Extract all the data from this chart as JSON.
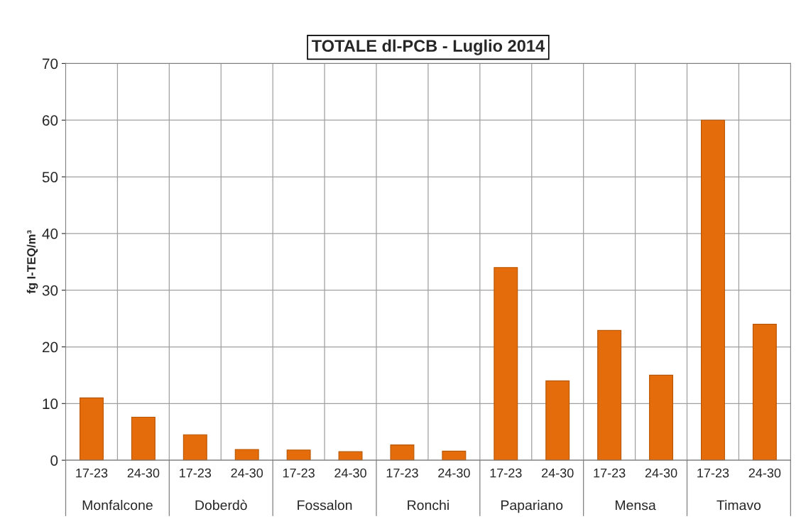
{
  "chart_data": {
    "type": "bar",
    "title": "TOTALE dl-PCB - Luglio 2014",
    "ylabel": "fg I-TEQ/m³",
    "categories": [
      "17-23",
      "24-30",
      "17-23",
      "24-30",
      "17-23",
      "24-30",
      "17-23",
      "24-30",
      "17-23",
      "24-30",
      "17-23",
      "24-30",
      "17-23",
      "24-30"
    ],
    "values": [
      11,
      7.6,
      4.5,
      1.9,
      1.8,
      1.5,
      2.7,
      1.6,
      34,
      14,
      22.9,
      15,
      60,
      24
    ],
    "color": "#e46c0a",
    "annotations": [
      "Monfalcone",
      "Doberdò",
      "Fossalon",
      "Ronchi",
      "Papariano",
      "Mensa",
      "Timavo"
    ],
    "ylim": [
      0,
      70
    ],
    "yticks": [
      0,
      10,
      20,
      30,
      40,
      50,
      60,
      70
    ],
    "grid": true
  }
}
